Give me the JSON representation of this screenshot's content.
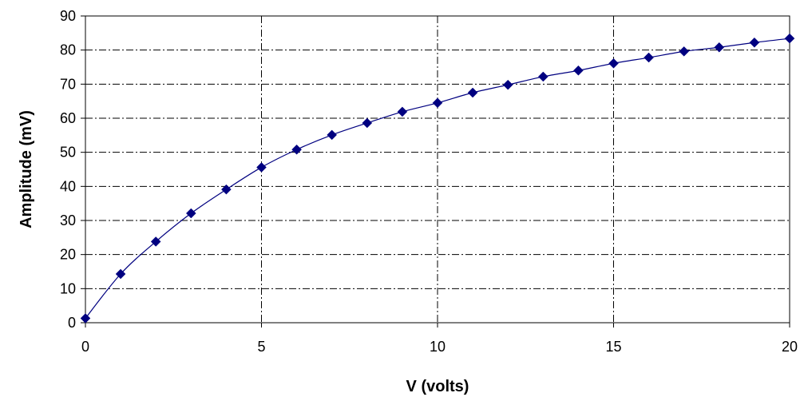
{
  "chart_data": {
    "type": "scatter",
    "title": "",
    "xlabel": "V (volts)",
    "ylabel": "Amplitude (mV)",
    "xlim": [
      0,
      20
    ],
    "ylim": [
      0,
      90
    ],
    "x_ticks": [
      0,
      5,
      10,
      15,
      20
    ],
    "y_ticks": [
      0,
      10,
      20,
      30,
      40,
      50,
      60,
      70,
      80,
      90
    ],
    "grid": true,
    "grid_style": "dash-dot",
    "legend": "none",
    "series": [
      {
        "marker": "diamond",
        "line": "smooth",
        "color": "#000080",
        "x": [
          0,
          1,
          2,
          3,
          4,
          5,
          6,
          7,
          8,
          9,
          10,
          11,
          12,
          13,
          14,
          15,
          16,
          17,
          18,
          19,
          20
        ],
        "y": [
          1.3,
          14.3,
          23.8,
          32.1,
          39.1,
          45.6,
          50.8,
          55.1,
          58.6,
          61.9,
          64.5,
          67.5,
          69.8,
          72.2,
          74.0,
          76.1,
          77.8,
          79.6,
          80.8,
          82.2,
          83.4
        ]
      }
    ]
  }
}
